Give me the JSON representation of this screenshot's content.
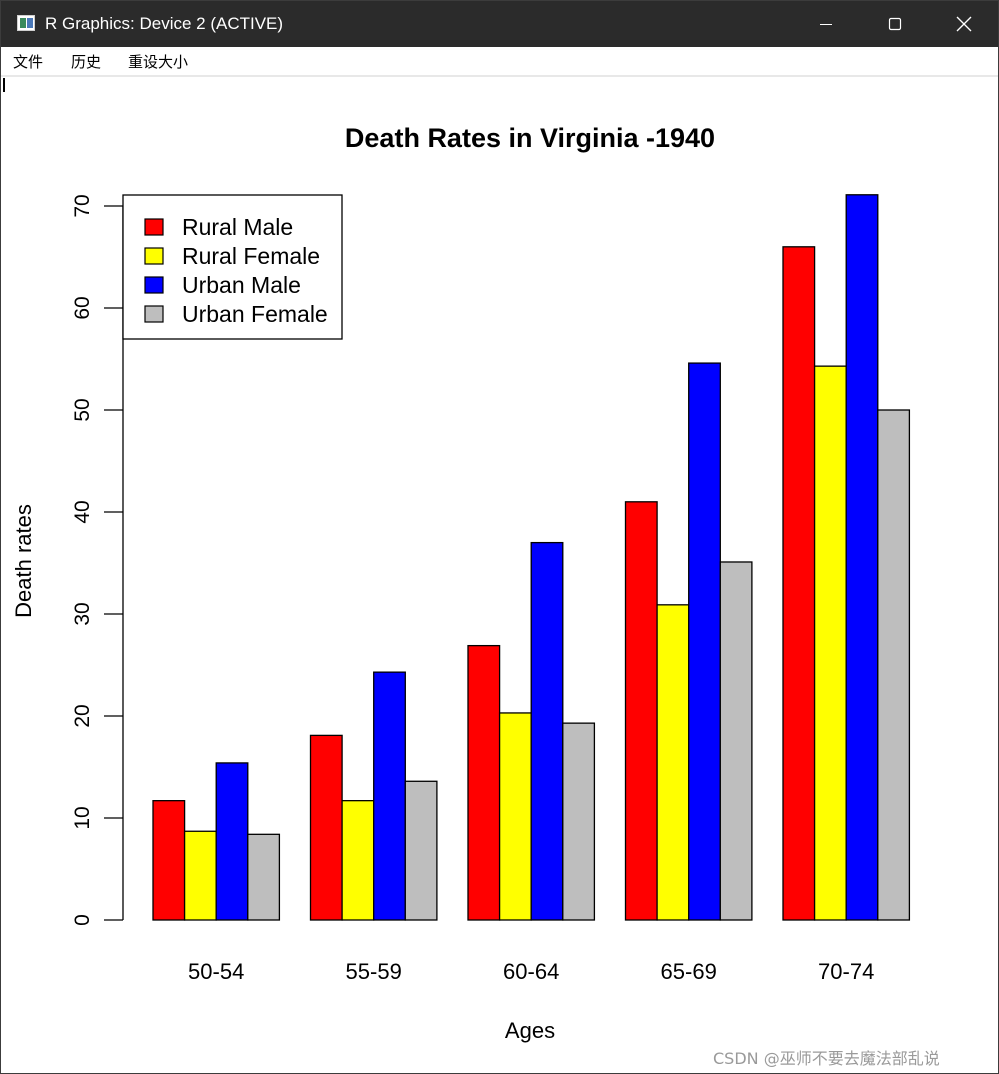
{
  "window": {
    "title": "R Graphics: Device 2 (ACTIVE)",
    "icon": "r-graphics-icon",
    "controls": [
      "minimize-icon",
      "maximize-icon",
      "close-icon"
    ]
  },
  "menu": {
    "file": "文件",
    "history": "历史",
    "resize": "重设大小"
  },
  "watermark": "CSDN @巫师不要去魔法部乱说",
  "chart_data": {
    "type": "bar",
    "title": "Death Rates in Virginia -1940",
    "xlabel": "Ages",
    "ylabel": "Death rates",
    "categories": [
      "50-54",
      "55-59",
      "60-64",
      "65-69",
      "70-74"
    ],
    "series": [
      {
        "name": "Rural Male",
        "color": "#ff0000",
        "values": [
          11.7,
          18.1,
          26.9,
          41.0,
          66.0
        ]
      },
      {
        "name": "Rural Female",
        "color": "#ffff00",
        "values": [
          8.7,
          11.7,
          20.3,
          30.9,
          54.3
        ]
      },
      {
        "name": "Urban Male",
        "color": "#0000ff",
        "values": [
          15.4,
          24.3,
          37.0,
          54.6,
          71.1
        ]
      },
      {
        "name": "Urban Female",
        "color": "#bebebe",
        "values": [
          8.4,
          13.6,
          19.3,
          35.1,
          50.0
        ]
      }
    ],
    "ylim": [
      0,
      70
    ],
    "yticks": [
      "0",
      "10",
      "20",
      "30",
      "40",
      "50",
      "60",
      "70"
    ],
    "grid": false,
    "legend_position": "top-left",
    "bar_mode": "grouped"
  }
}
